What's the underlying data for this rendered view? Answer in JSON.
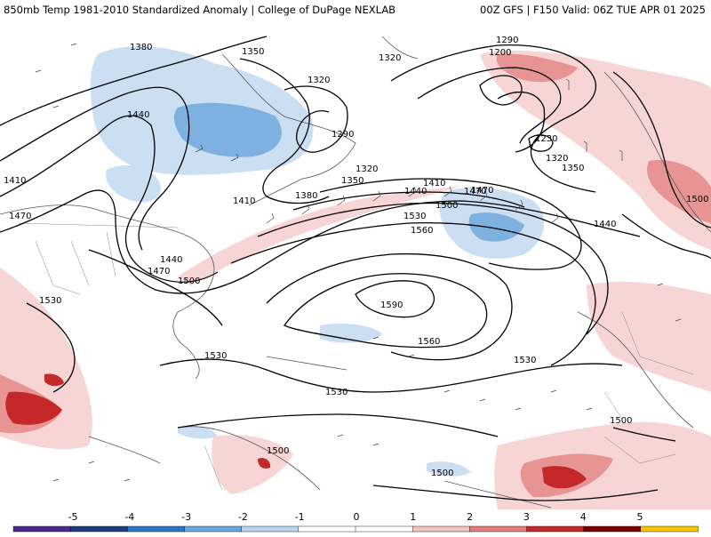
{
  "header": {
    "title_left": "850mb Temp 1981-2010 Standardized Anomaly | College of DuPage NEXLAB",
    "title_right": "00Z GFS | F150 Valid: 06Z TUE APR 01 2025"
  },
  "contour_labels": [
    "1380",
    "1350",
    "1320",
    "1290",
    "1200",
    "1230",
    "1320",
    "1350",
    "1440",
    "1410",
    "1470",
    "1320",
    "1290",
    "1320",
    "1350",
    "1380",
    "1410",
    "1440",
    "1470",
    "1500",
    "1530",
    "1560",
    "1590",
    "1560",
    "1530",
    "1530",
    "1500",
    "1470",
    "1440",
    "1410",
    "1530",
    "1530",
    "1500",
    "1500",
    "1500",
    "1500",
    "1470",
    "1440"
  ],
  "colorbar": {
    "tick_labels": [
      "-5",
      "-4",
      "-3",
      "-2",
      "-1",
      "0",
      "1",
      "2",
      "3",
      "4",
      "5"
    ],
    "colors": [
      "#4b2a8c",
      "#1c3f7a",
      "#2f76c0",
      "#6aa5dc",
      "#b8d4ee",
      "#ffffff",
      "#ffffff",
      "#f5c2c2",
      "#e27c7c",
      "#c42828",
      "#7a0000",
      "#f5c400"
    ]
  }
}
